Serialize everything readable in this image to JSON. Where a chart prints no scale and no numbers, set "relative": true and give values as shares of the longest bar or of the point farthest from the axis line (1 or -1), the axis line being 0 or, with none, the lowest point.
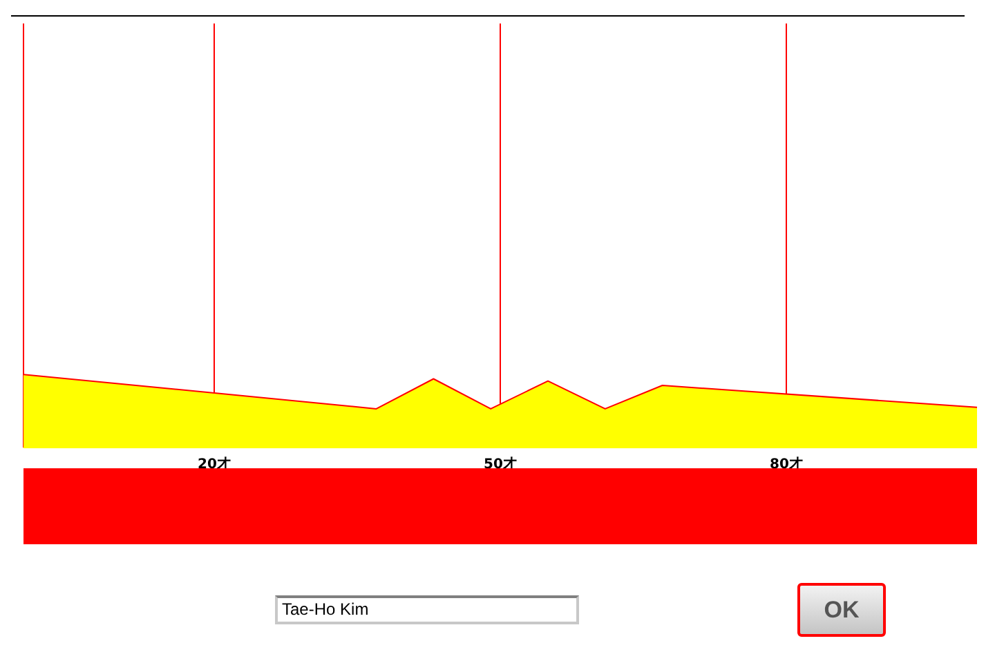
{
  "chart_data": {
    "type": "area",
    "relative": true,
    "x": [
      0,
      37,
      43,
      49,
      55,
      61,
      67,
      100
    ],
    "series": [
      {
        "color": "#ffff00",
        "values": [
          1,
          0.53,
          0.94,
          0.53,
          0.91,
          0.53,
          0.85,
          0.55
        ]
      }
    ],
    "xlim": [
      0,
      100
    ],
    "xticks": [
      {
        "value": 0,
        "label": null
      },
      {
        "value": 20,
        "label": "20才"
      },
      {
        "value": 50,
        "label": "50才"
      },
      {
        "value": 80,
        "label": "80才"
      }
    ],
    "grid": "x",
    "annotations": [
      "Tae-Ho Kim",
      "OK"
    ]
  }
}
